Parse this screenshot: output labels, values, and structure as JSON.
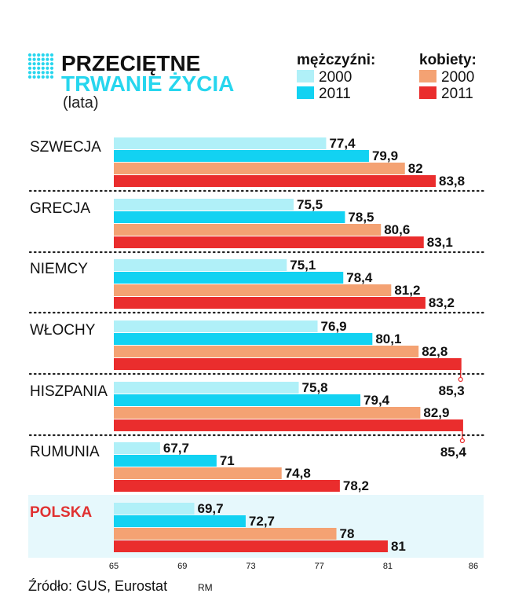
{
  "header": {
    "title_line1": "PRZECIĘTNE",
    "title_line2": "TRWANIE ŻYCIA",
    "unit": "(lata)"
  },
  "legend": {
    "men_heading": "mężczyźni:",
    "women_heading": "kobiety:",
    "men_2000": "2000",
    "men_2011": "2011",
    "women_2000": "2000",
    "women_2011": "2011"
  },
  "colors": {
    "men_2000": "#b0f0f8",
    "men_2011": "#12d2f2",
    "women_2000": "#f4a273",
    "women_2011": "#ea2d2d",
    "title_accent": "#27d6ee",
    "highlight_bg": "#e6f8fc",
    "highlight_text": "#e03131"
  },
  "footer": {
    "source": "Źródło: GUS, Eurostat",
    "credit": "RM"
  },
  "chart_data": {
    "type": "bar",
    "orientation": "horizontal",
    "title": "PRZECIĘTNE TRWANIE ŻYCIA",
    "subtitle": "(lata)",
    "xlim": [
      65,
      86
    ],
    "ticks": [
      65,
      69,
      73,
      77,
      81,
      86
    ],
    "categories": [
      "SZWECJA",
      "GRECJA",
      "NIEMCY",
      "WŁOCHY",
      "HISZPANIA",
      "RUMUNIA",
      "POLSKA"
    ],
    "highlight": "POLSKA",
    "series": [
      {
        "key": "men_2000",
        "group": "mężczyźni:",
        "name": "2000",
        "values": [
          77.4,
          75.5,
          75.1,
          76.9,
          75.8,
          67.7,
          69.7
        ]
      },
      {
        "key": "men_2011",
        "group": "mężczyźni:",
        "name": "2011",
        "values": [
          79.9,
          78.5,
          78.4,
          80.1,
          79.4,
          71,
          72.7
        ]
      },
      {
        "key": "women_2000",
        "group": "kobiety:",
        "name": "2000",
        "values": [
          82,
          80.6,
          81.2,
          82.8,
          82.9,
          74.8,
          78
        ]
      },
      {
        "key": "women_2011",
        "group": "kobiety:",
        "name": "2011",
        "values": [
          83.8,
          83.1,
          83.2,
          85.3,
          85.4,
          78.2,
          81
        ]
      }
    ],
    "value_labels": [
      [
        "77,4",
        "79,9",
        "82",
        "83,8"
      ],
      [
        "75,5",
        "78,5",
        "80,6",
        "83,1"
      ],
      [
        "75,1",
        "78,4",
        "81,2",
        "83,2"
      ],
      [
        "76,9",
        "80,1",
        "82,8",
        "85,3"
      ],
      [
        "75,8",
        "79,4",
        "82,9",
        "85,4"
      ],
      [
        "67,7",
        "71",
        "74,8",
        "78,2"
      ],
      [
        "69,7",
        "72,7",
        "78",
        "81"
      ]
    ]
  }
}
